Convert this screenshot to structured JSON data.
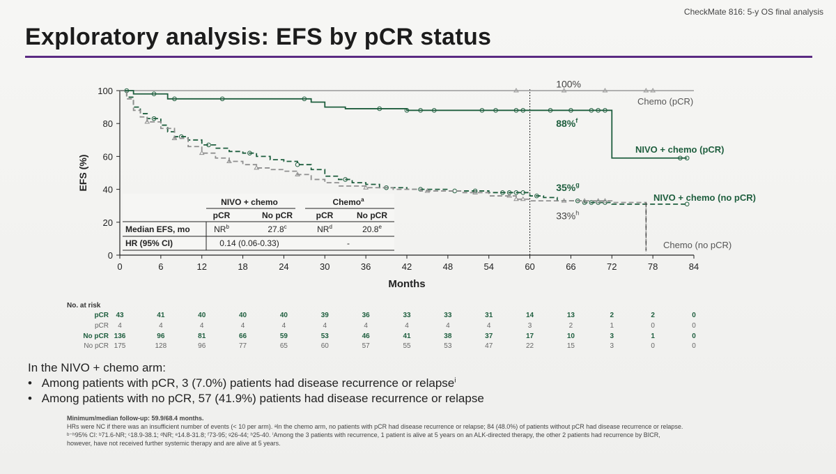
{
  "header": {
    "study": "CheckMate 816: 5-y OS final analysis"
  },
  "title": "Exploratory analysis: EFS by pCR status",
  "chart_data": {
    "type": "line",
    "xlabel": "Months",
    "ylabel": "EFS (%)",
    "xlim": [
      0,
      84
    ],
    "ylim": [
      0,
      100
    ],
    "x_ticks": [
      0,
      6,
      12,
      18,
      24,
      30,
      36,
      42,
      48,
      54,
      60,
      66,
      72,
      78,
      84
    ],
    "y_ticks": [
      0,
      20,
      40,
      60,
      80,
      100
    ],
    "reference_line_x": 60,
    "series": [
      {
        "name": "Chemo (pCR)",
        "style": "solid",
        "color": "#9a9a9a",
        "points": [
          [
            0,
            100
          ],
          [
            84,
            100
          ]
        ],
        "censor_x": [
          58,
          65,
          71,
          77,
          78
        ]
      },
      {
        "name": "NIVO + chemo (pCR)",
        "style": "solid",
        "color": "#1e5e3e",
        "points": [
          [
            0,
            100
          ],
          [
            2,
            98
          ],
          [
            7,
            95
          ],
          [
            25,
            95
          ],
          [
            28,
            93
          ],
          [
            30,
            93
          ],
          [
            30,
            90
          ],
          [
            33,
            89
          ],
          [
            37,
            89
          ],
          [
            42,
            88
          ],
          [
            72,
            88
          ],
          [
            72,
            59
          ],
          [
            83,
            59
          ]
        ],
        "censor_x": [
          1,
          5,
          8,
          15,
          27,
          38,
          42,
          44,
          46,
          53,
          55,
          58,
          59,
          63,
          66,
          69,
          70,
          71,
          82,
          83
        ]
      },
      {
        "name": "NIVO + chemo (no pCR)",
        "style": "dashed",
        "color": "#1e5e3e",
        "points": [
          [
            0,
            100
          ],
          [
            1,
            96
          ],
          [
            2,
            90
          ],
          [
            3,
            86
          ],
          [
            4,
            83
          ],
          [
            6,
            79
          ],
          [
            7,
            75
          ],
          [
            8,
            72
          ],
          [
            10,
            70
          ],
          [
            12,
            67
          ],
          [
            14,
            65
          ],
          [
            16,
            63
          ],
          [
            18,
            62
          ],
          [
            20,
            60
          ],
          [
            22,
            58
          ],
          [
            24,
            57
          ],
          [
            26,
            55
          ],
          [
            28,
            52
          ],
          [
            30,
            48
          ],
          [
            32,
            46
          ],
          [
            34,
            44
          ],
          [
            36,
            43
          ],
          [
            38,
            41
          ],
          [
            40,
            41
          ],
          [
            42,
            40
          ],
          [
            48,
            39
          ],
          [
            54,
            38
          ],
          [
            58,
            38
          ],
          [
            60,
            36
          ],
          [
            62,
            35
          ],
          [
            64,
            33
          ],
          [
            68,
            32
          ],
          [
            72,
            31
          ],
          [
            83,
            31
          ]
        ],
        "censor_x": [
          5,
          9,
          13,
          19,
          26,
          33,
          39,
          44,
          49,
          52,
          56,
          57,
          58,
          59,
          61,
          67,
          68,
          69,
          70,
          71,
          83
        ]
      },
      {
        "name": "Chemo (no pCR)",
        "style": "dashed",
        "color": "#8f8f8f",
        "points": [
          [
            0,
            100
          ],
          [
            1,
            95
          ],
          [
            2,
            88
          ],
          [
            3,
            84
          ],
          [
            4,
            81
          ],
          [
            6,
            77
          ],
          [
            8,
            71
          ],
          [
            10,
            66
          ],
          [
            12,
            62
          ],
          [
            14,
            59
          ],
          [
            16,
            57
          ],
          [
            18,
            55
          ],
          [
            20,
            53
          ],
          [
            22,
            52
          ],
          [
            24,
            51
          ],
          [
            26,
            49
          ],
          [
            28,
            46
          ],
          [
            30,
            44
          ],
          [
            32,
            42
          ],
          [
            36,
            41
          ],
          [
            40,
            40
          ],
          [
            44,
            39
          ],
          [
            50,
            38
          ],
          [
            54,
            36
          ],
          [
            58,
            34
          ],
          [
            60,
            33
          ],
          [
            70,
            33
          ],
          [
            72,
            32
          ],
          [
            77,
            32
          ],
          [
            77,
            0
          ]
        ],
        "censor_x": [
          4,
          8,
          12,
          16,
          20,
          26,
          36,
          45,
          52,
          57,
          58,
          59,
          65,
          68,
          70,
          71
        ]
      }
    ],
    "annotations": [
      {
        "text": "100%",
        "x": 62,
        "y": 104
      },
      {
        "text": "88%",
        "sup": "f",
        "x": 62,
        "y": 80
      },
      {
        "text": "35%",
        "sup": "g",
        "x": 62,
        "y": 41
      },
      {
        "text": "33%",
        "sup": "h",
        "x": 62,
        "y": 24
      }
    ],
    "curve_labels": [
      {
        "text": "Chemo (pCR)",
        "series": 0
      },
      {
        "text": "NIVO + chemo (pCR)",
        "series": 1
      },
      {
        "text": "NIVO + chemo (no pCR)",
        "series": 2
      },
      {
        "text": "Chemo (no pCR)",
        "series": 3
      }
    ],
    "inset_table": {
      "group_headers": [
        "NIVO + chemo",
        "Chemo",
        "a"
      ],
      "col_headers": [
        "pCR",
        "No pCR",
        "pCR",
        "No pCR"
      ],
      "rows": [
        {
          "label": "Median EFS, mo",
          "cells": [
            [
              "NR",
              "b"
            ],
            [
              "27.8",
              "c"
            ],
            [
              "NR",
              "d"
            ],
            [
              "20.8",
              "e"
            ]
          ]
        },
        {
          "label": "HR (95% CI)",
          "nivo": "0.14 (0.06-0.33)",
          "chemo": "-"
        }
      ]
    }
  },
  "risk_table": {
    "title": "No. at risk",
    "rows": [
      {
        "label": "pCR",
        "arm": "nivo",
        "values": [
          43,
          41,
          40,
          40,
          40,
          39,
          36,
          33,
          33,
          31,
          14,
          13,
          2,
          2,
          0
        ]
      },
      {
        "label": "pCR",
        "arm": "chemo",
        "values": [
          4,
          4,
          4,
          4,
          4,
          4,
          4,
          4,
          4,
          4,
          3,
          2,
          1,
          0,
          0
        ]
      },
      {
        "label": "No pCR",
        "arm": "nivo",
        "values": [
          136,
          96,
          81,
          66,
          59,
          53,
          46,
          41,
          38,
          37,
          17,
          10,
          3,
          1,
          0
        ]
      },
      {
        "label": "No pCR",
        "arm": "chemo",
        "values": [
          175,
          128,
          96,
          77,
          65,
          60,
          57,
          55,
          53,
          47,
          22,
          15,
          3,
          0,
          0
        ]
      }
    ]
  },
  "bullets": {
    "lead": "In the NIVO + chemo arm:",
    "items": [
      {
        "text": "Among patients with pCR, 3 (7.0%) patients had disease recurrence or relapse",
        "sup": "i"
      },
      {
        "text": "Among patients with no pCR, 57 (41.9%) patients had disease recurrence or relapse",
        "sup": ""
      }
    ]
  },
  "footnotes": {
    "line1": "Minimum/median follow-up: 59.9/68.4 months.",
    "line2": "HRs were NC if there was an insufficient number of events (< 10 per arm). ᵃIn the chemo arm, no patients with pCR had disease recurrence or relapse; 84 (48.0%) of patients without pCR had disease recurrence or relapse.",
    "line3": "ᵇ⁻ʰ95% CI: ᵇ71.6-NR; ᶜ18.9-38.1; ᵈNR; ᵉ14.8-31.8; ᶠ73-95; ᵍ26-44; ʰ25-40. ⁱAmong the 3 patients with recurrence, 1 patient is alive at 5 years on an ALK-directed therapy, the other 2 patients had recurrence by BICR,",
    "line4": "however, have not received further systemic therapy and are alive at 5 years."
  }
}
